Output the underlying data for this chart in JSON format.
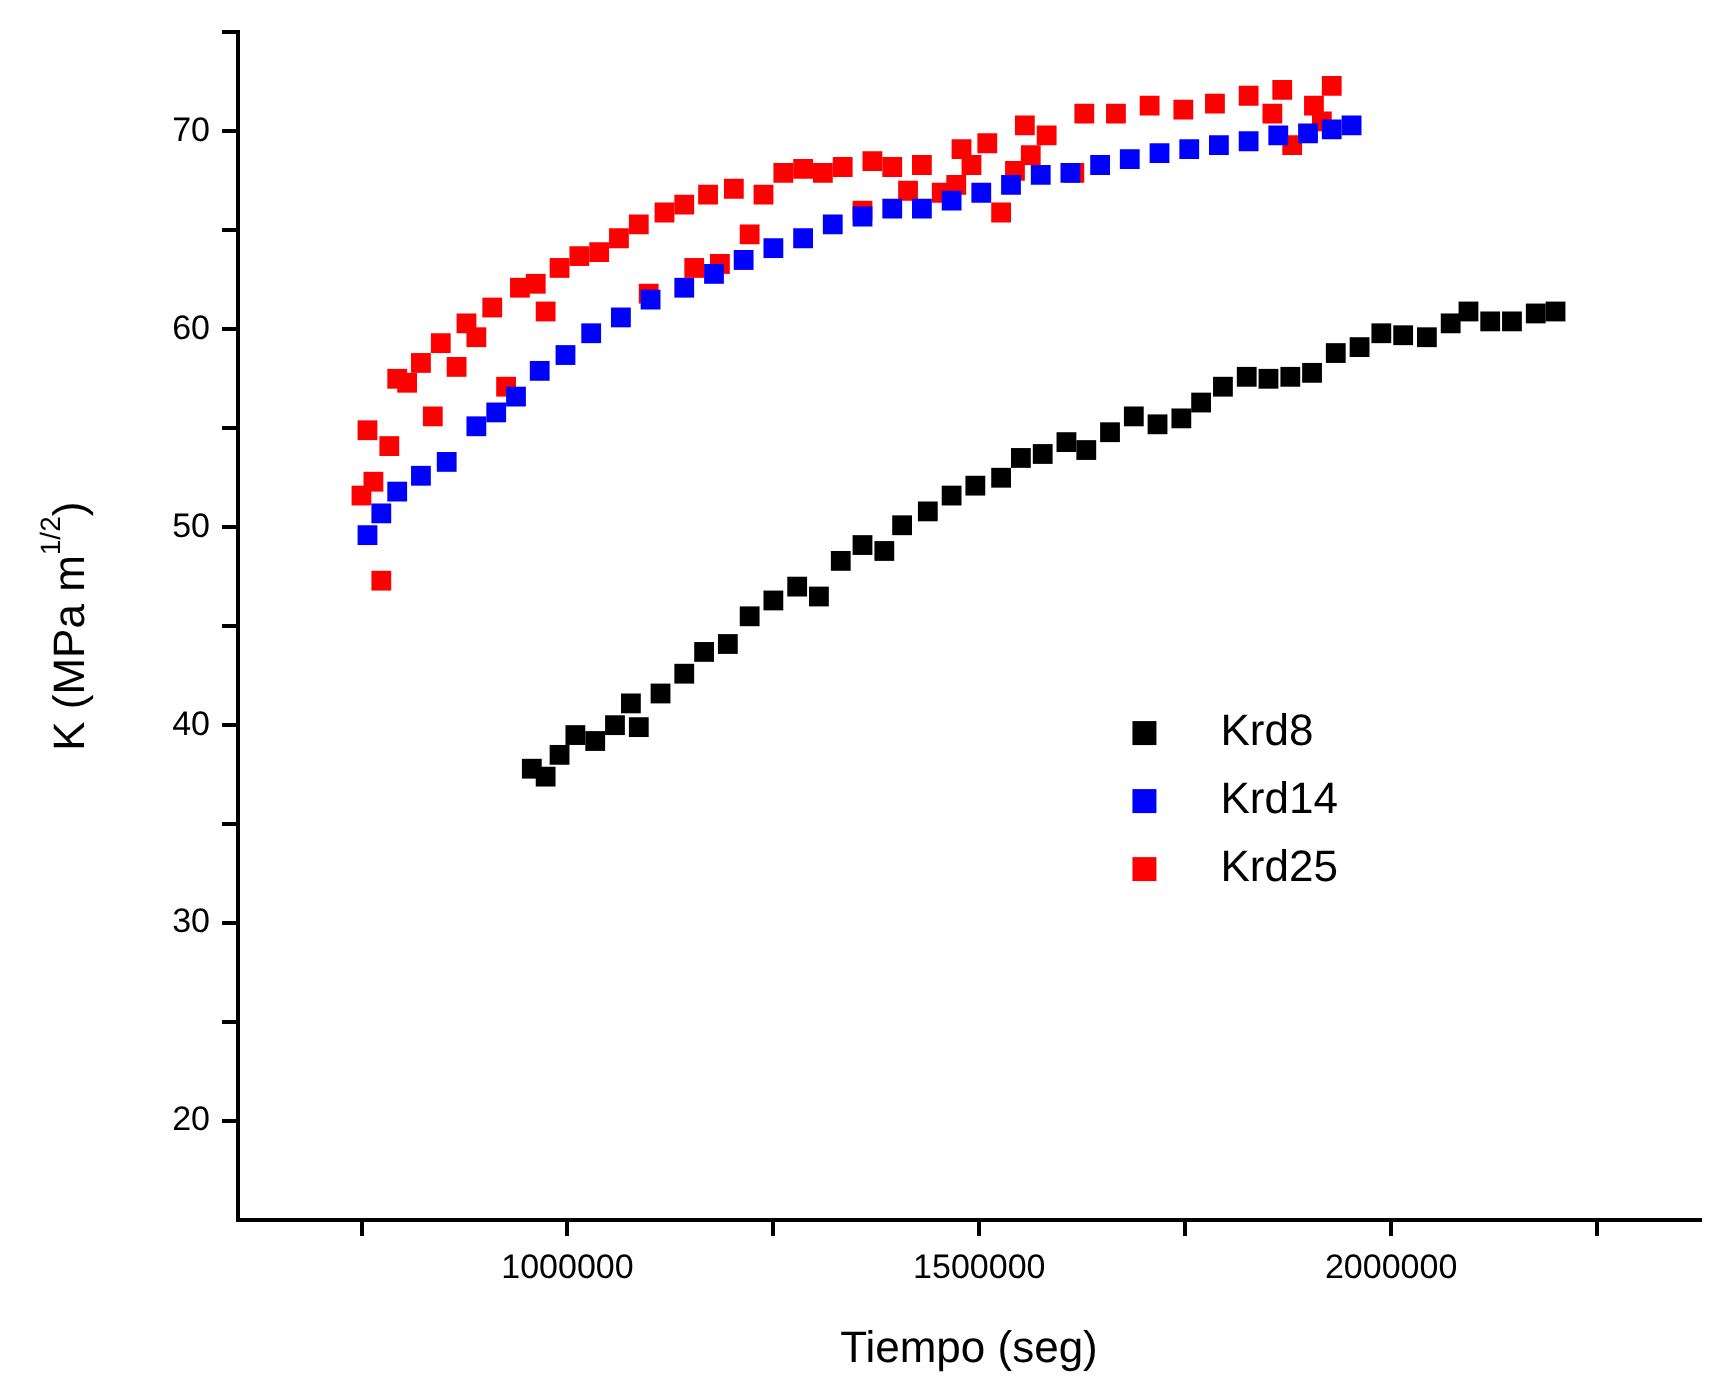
{
  "chart_data": {
    "type": "scatter",
    "xlabel": "Tiempo (seg)",
    "ylabel": "K (MPa m$^{1/2}$)",
    "xlim": [
      600000,
      2375000
    ],
    "xticks": [
      {
        "value": 750000,
        "label": null
      },
      1000000,
      {
        "value": 1250000,
        "label": null
      },
      1500000,
      {
        "value": 1750000,
        "label": null
      },
      2000000,
      {
        "value": 2250000,
        "label": null
      }
    ],
    "ylim": [
      15,
      75
    ],
    "yticks": [
      20,
      {
        "value": 25,
        "label": null
      },
      30,
      {
        "value": 35,
        "label": null
      },
      40,
      {
        "value": 45,
        "label": null
      },
      50,
      {
        "value": 55,
        "label": null
      },
      60,
      {
        "value": 65,
        "label": null
      },
      70,
      {
        "value": 75,
        "label": null
      }
    ],
    "grid": false,
    "legend": "right",
    "marker": "square",
    "series": [
      {
        "name": "Krd8",
        "color": "#000000",
        "x": [
          956700,
          973500,
          990400,
          1009600,
          1033700,
          1057700,
          1077000,
          1086600,
          1113000,
          1141800,
          1165900,
          1194700,
          1221200,
          1250000,
          1278900,
          1305300,
          1331800,
          1358200,
          1384700,
          1406300,
          1437500,
          1466400,
          1495200,
          1526500,
          1550500,
          1577000,
          1605800,
          1629900,
          1658700,
          1687600,
          1716400,
          1745300,
          1769300,
          1795800,
          1824700,
          1851100,
          1877600,
          1904000,
          1932800,
          1961700,
          1988100,
          2014600,
          2043400,
          2072300,
          2093900,
          2120300,
          2146700,
          2175600,
          2199600
        ],
        "values": [
          37.8,
          37.4,
          38.5,
          39.5,
          39.2,
          40.0,
          41.1,
          39.9,
          41.6,
          42.6,
          43.7,
          44.1,
          45.5,
          46.3,
          47.0,
          46.5,
          48.3,
          49.1,
          48.8,
          50.1,
          50.8,
          51.6,
          52.1,
          52.5,
          53.5,
          53.7,
          54.3,
          53.9,
          54.8,
          55.6,
          55.2,
          55.5,
          56.3,
          57.1,
          57.6,
          57.5,
          57.6,
          57.8,
          58.8,
          59.1,
          59.8,
          59.7,
          59.6,
          60.3,
          60.9,
          60.4,
          60.4,
          60.8,
          60.9
        ]
      },
      {
        "name": "Krd14",
        "color": "#0000ff",
        "x": [
          757200,
          774000,
          793300,
          822100,
          853400,
          889400,
          913500,
          937500,
          966300,
          997600,
          1028800,
          1064900,
          1100900,
          1141800,
          1177900,
          1213900,
          1250000,
          1286100,
          1322100,
          1358200,
          1394300,
          1430300,
          1466400,
          1502400,
          1538500,
          1574600,
          1610600,
          1646700,
          1682700,
          1718800,
          1754900,
          1790900,
          1827000,
          1863000,
          1899100,
          1927900,
          1952000
        ],
        "values": [
          49.6,
          50.7,
          51.8,
          52.6,
          53.3,
          55.1,
          55.8,
          56.6,
          57.9,
          58.7,
          59.8,
          60.6,
          61.5,
          62.1,
          62.8,
          63.5,
          64.1,
          64.6,
          65.3,
          65.7,
          66.1,
          66.1,
          66.5,
          66.9,
          67.3,
          67.8,
          67.9,
          68.3,
          68.6,
          68.9,
          69.1,
          69.3,
          69.5,
          69.8,
          69.9,
          70.1,
          70.3
        ]
      },
      {
        "name": "Krd25",
        "color": "#ff0000",
        "x": [
          749900,
          757200,
          764400,
          774000,
          783700,
          793300,
          805300,
          822100,
          836500,
          846200,
          865400,
          877400,
          889400,
          908700,
          925500,
          942300,
          961500,
          973500,
          990400,
          1014400,
          1038500,
          1062500,
          1086600,
          1098600,
          1117800,
          1141800,
          1153900,
          1170700,
          1185100,
          1202000,
          1221200,
          1238000,
          1262100,
          1286100,
          1310100,
          1334200,
          1358200,
          1370200,
          1394300,
          1413500,
          1430300,
          1454400,
          1472000,
          1478400,
          1490500,
          1509700,
          1526500,
          1543300,
          1555300,
          1562500,
          1581800,
          1615400,
          1627500,
          1665900,
          1706800,
          1747700,
          1786100,
          1827000,
          1855800,
          1867800,
          1879900,
          1906300,
          1915900,
          1927900
        ],
        "values": [
          51.6,
          54.9,
          52.3,
          47.3,
          54.1,
          57.5,
          57.3,
          58.3,
          55.6,
          59.3,
          58.1,
          60.3,
          59.6,
          61.1,
          57.1,
          62.1,
          62.3,
          60.9,
          63.1,
          63.7,
          63.9,
          64.6,
          65.3,
          61.8,
          65.9,
          66.3,
          63.1,
          66.8,
          63.3,
          67.1,
          64.8,
          66.8,
          67.9,
          68.1,
          67.9,
          68.2,
          66.0,
          68.5,
          68.2,
          67.0,
          68.3,
          66.9,
          67.3,
          69.1,
          68.3,
          69.4,
          65.9,
          68.0,
          70.3,
          68.8,
          69.8,
          67.9,
          70.9,
          70.9,
          71.3,
          71.1,
          71.4,
          71.8,
          70.9,
          72.1,
          69.3,
          71.3,
          70.5,
          72.3
        ]
      }
    ]
  }
}
